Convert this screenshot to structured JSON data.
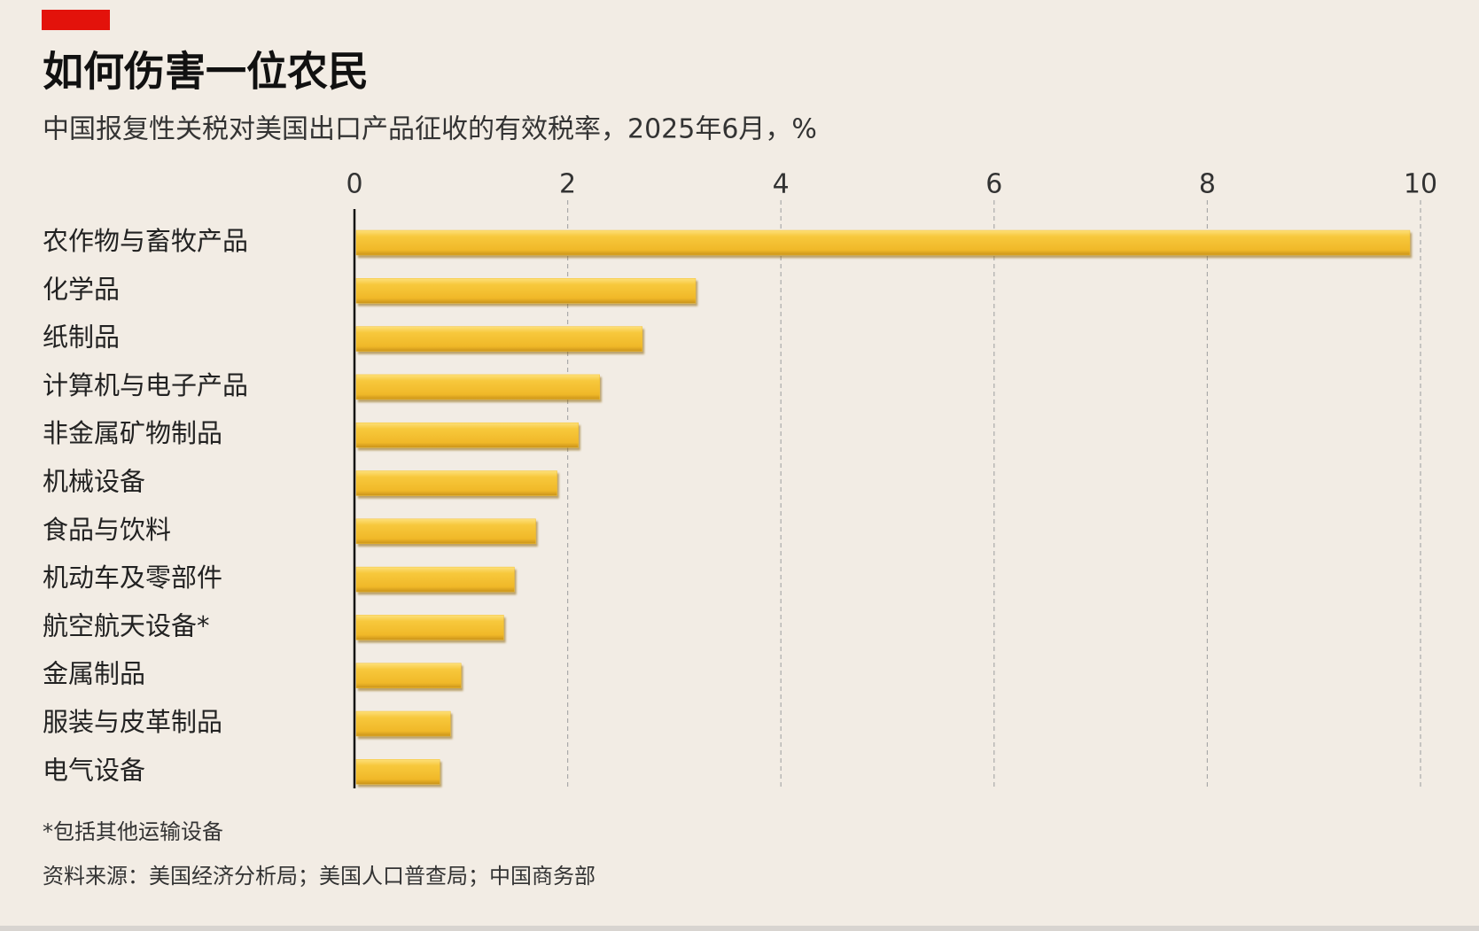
{
  "chart_data": {
    "type": "barh",
    "title": "如何伤害一位农民",
    "subtitle": "中国报复性关税对美国出口产品征收的有效税率，2025年6月，%",
    "categories": [
      "农作物与畜牧产品",
      "化学品",
      "纸制品",
      "计算机与电子产品",
      "非金属矿物制品",
      "机械设备",
      "食品与饮料",
      "机动车及零部件",
      "航空航天设备*",
      "金属制品",
      "服装与皮革制品",
      "电气设备"
    ],
    "values": [
      9.9,
      3.2,
      2.7,
      2.3,
      2.1,
      1.9,
      1.7,
      1.5,
      1.4,
      1.0,
      0.9,
      0.8
    ],
    "color": "#f5c232",
    "xlim": [
      0,
      10
    ],
    "xticks": [
      0,
      2,
      4,
      6,
      8,
      10
    ],
    "grid": true,
    "footnote": "*包括其他运输设备",
    "source": "资料来源：美国经济分析局；美国人口普查局；中国商务部"
  }
}
